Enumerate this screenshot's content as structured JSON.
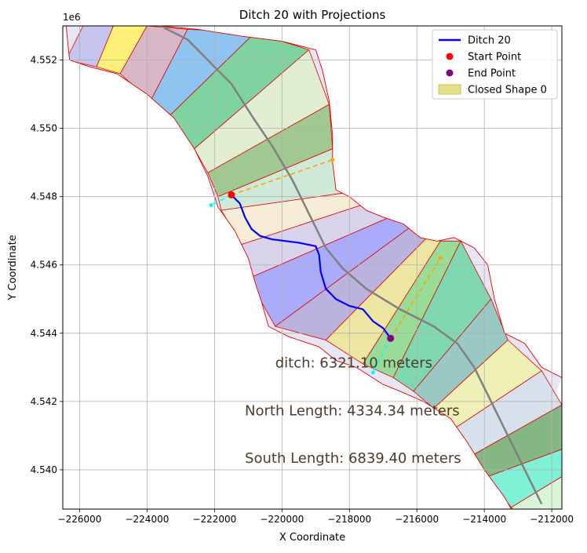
{
  "chart_data": {
    "type": "line",
    "title": "Ditch 20 with Projections",
    "xlabel": "X Coordinate",
    "ylabel": "Y Coordinate",
    "y_offset_label": "1e6",
    "xlim": [
      -226500,
      -211700
    ],
    "ylim": [
      4538850,
      4553000
    ],
    "x_ticks": [
      -226000,
      -224000,
      -222000,
      -220000,
      -218000,
      -216000,
      -214000,
      -212000
    ],
    "y_ticks": [
      4540000,
      4542000,
      4544000,
      4546000,
      4548000,
      4550000,
      4552000
    ],
    "x_tick_labels": [
      "−226000",
      "−224000",
      "−222000",
      "−220000",
      "−218000",
      "−216000",
      "−214000",
      "−212000"
    ],
    "y_tick_labels": [
      "4.540",
      "4.542",
      "4.544",
      "4.546",
      "4.548",
      "4.550",
      "4.552"
    ],
    "grid": true,
    "legend_position": "upper-right",
    "legend": [
      {
        "label": "Ditch 20",
        "kind": "line",
        "color": "#0000ff"
      },
      {
        "label": "Start Point",
        "kind": "point",
        "color": "#ff0000"
      },
      {
        "label": "End Point",
        "kind": "point",
        "color": "#800080"
      },
      {
        "label": "Closed Shape 0",
        "kind": "patch",
        "color": "#e5e08a"
      }
    ],
    "annotations": [
      {
        "text": "ditch: 6321.10 meters",
        "x": -220200,
        "y": 4543000
      },
      {
        "text": "North Length: 4334.34 meters",
        "x": -221100,
        "y": 4541600
      },
      {
        "text": "South Length: 6839.40 meters",
        "x": -221100,
        "y": 4540200
      }
    ],
    "annotation_color": "#4d3b2e",
    "ditch_line": {
      "name": "Ditch 20",
      "color": "#0000ff",
      "points": [
        [
          -221500,
          4548050
        ],
        [
          -221250,
          4547800
        ],
        [
          -221100,
          4547400
        ],
        [
          -220900,
          4547050
        ],
        [
          -220650,
          4546850
        ],
        [
          -220300,
          4546750
        ],
        [
          -219500,
          4546650
        ],
        [
          -219000,
          4546550
        ],
        [
          -218900,
          4546300
        ],
        [
          -218850,
          4545800
        ],
        [
          -218700,
          4545300
        ],
        [
          -218400,
          4545000
        ],
        [
          -218000,
          4544800
        ],
        [
          -217600,
          4544700
        ],
        [
          -217300,
          4544350
        ],
        [
          -217000,
          4544150
        ],
        [
          -216780,
          4543850
        ]
      ]
    },
    "start_point": {
      "name": "Start Point",
      "x": -221500,
      "y": 4548050,
      "color": "#ff0000"
    },
    "end_point": {
      "name": "End Point",
      "x": -216780,
      "y": 4543850,
      "color": "#800080"
    },
    "north_projection": {
      "color": "#ffa500",
      "points": [
        [
          -221500,
          4548050
        ],
        [
          -218500,
          4549080
        ]
      ]
    },
    "south_projection": {
      "color": "#ffa500",
      "points": [
        [
          -216780,
          4543850
        ],
        [
          -215300,
          4546200
        ]
      ]
    },
    "start_offset": {
      "color": "#00ffff",
      "points": [
        [
          -221500,
          4548050
        ],
        [
          -222100,
          4547750
        ]
      ]
    },
    "end_offset": {
      "color": "#00ffff",
      "points": [
        [
          -216780,
          4543850
        ],
        [
          -217300,
          4542850
        ]
      ]
    },
    "centerline": {
      "color": "#808080",
      "points": [
        [
          -223500,
          4552950
        ],
        [
          -222800,
          4552600
        ],
        [
          -222200,
          4552000
        ],
        [
          -221500,
          4551300
        ],
        [
          -220850,
          4550300
        ],
        [
          -220300,
          4549500
        ],
        [
          -219700,
          4548500
        ],
        [
          -219200,
          4547500
        ],
        [
          -218700,
          4546500
        ],
        [
          -218200,
          4545900
        ],
        [
          -217500,
          4545300
        ],
        [
          -216500,
          4544700
        ],
        [
          -215500,
          4544200
        ],
        [
          -214800,
          4543700
        ],
        [
          -214300,
          4543000
        ],
        [
          -213800,
          4542000
        ],
        [
          -213300,
          4541000
        ],
        [
          -212800,
          4540000
        ],
        [
          -212300,
          4539000
        ]
      ]
    },
    "river_outline_left": [
      [
        -226400,
        4553000
      ],
      [
        -226300,
        4552000
      ],
      [
        -225700,
        4551800
      ],
      [
        -224900,
        4551600
      ],
      [
        -224000,
        4551000
      ],
      [
        -223200,
        4550300
      ],
      [
        -222600,
        4549400
      ],
      [
        -222200,
        4548600
      ],
      [
        -221900,
        4547700
      ],
      [
        -221400,
        4547000
      ],
      [
        -221000,
        4546200
      ],
      [
        -220800,
        4545500
      ],
      [
        -220600,
        4544900
      ],
      [
        -220400,
        4544200
      ],
      [
        -219800,
        4543900
      ],
      [
        -218900,
        4543600
      ],
      [
        -218400,
        4543200
      ],
      [
        -217800,
        4543000
      ],
      [
        -217000,
        4542500
      ],
      [
        -216500,
        4542300
      ],
      [
        -215800,
        4542000
      ],
      [
        -215000,
        4541500
      ],
      [
        -214500,
        4540800
      ],
      [
        -214000,
        4540000
      ],
      [
        -213400,
        4539200
      ],
      [
        -213200,
        4538850
      ]
    ],
    "river_outline_right": [
      [
        -223600,
        4553000
      ],
      [
        -222500,
        4552900
      ],
      [
        -221200,
        4552700
      ],
      [
        -220000,
        4552550
      ],
      [
        -219000,
        4552300
      ],
      [
        -218800,
        4551700
      ],
      [
        -218600,
        4550800
      ],
      [
        -218500,
        4549800
      ],
      [
        -218500,
        4549000
      ],
      [
        -218400,
        4548200
      ],
      [
        -218000,
        4548000
      ],
      [
        -217500,
        4547600
      ],
      [
        -217000,
        4547400
      ],
      [
        -216400,
        4547200
      ],
      [
        -215900,
        4546800
      ],
      [
        -215400,
        4546700
      ],
      [
        -214900,
        4546800
      ],
      [
        -214300,
        4546500
      ],
      [
        -213900,
        4546000
      ],
      [
        -213700,
        4545000
      ],
      [
        -213400,
        4544000
      ],
      [
        -212800,
        4543700
      ],
      [
        -212300,
        4543000
      ],
      [
        -211700,
        4542700
      ]
    ],
    "transects": [
      {
        "color": "#c5c5f0",
        "from": [
          -226400,
          4552000
        ],
        "to": [
          -225900,
          4553000
        ]
      },
      {
        "color": "#fff07a",
        "from": [
          -225500,
          4551800
        ],
        "to": [
          -225000,
          4553000
        ]
      },
      {
        "color": "#d7b7c5",
        "from": [
          -224800,
          4551600
        ],
        "to": [
          -224000,
          4553000
        ]
      },
      {
        "color": "#8fc4f0",
        "from": [
          -223900,
          4550800
        ],
        "to": [
          -222800,
          4552900
        ]
      },
      {
        "color": "#7fd3a0",
        "from": [
          -223300,
          4550400
        ],
        "to": [
          -220800,
          4552800
        ]
      },
      {
        "color": "#e2eed2",
        "from": [
          -222600,
          4549400
        ],
        "to": [
          -219200,
          4552300
        ]
      },
      {
        "color": "#a0c890",
        "from": [
          -222200,
          4548700
        ],
        "to": [
          -218600,
          4550700
        ]
      },
      {
        "color": "#cfe9d8",
        "from": [
          -221900,
          4548000
        ],
        "to": [
          -218500,
          4549400
        ]
      },
      {
        "color": "#f7edd6",
        "from": [
          -221800,
          4547600
        ],
        "to": [
          -218200,
          4548100
        ]
      },
      {
        "color": "#d8d2ea",
        "from": [
          -221200,
          4546600
        ],
        "to": [
          -217500,
          4547800
        ]
      },
      {
        "color": "#ababfc",
        "from": [
          -221000,
          4545600
        ],
        "to": [
          -216800,
          4547400
        ]
      },
      {
        "color": "#bab3dd",
        "from": [
          -220200,
          4544200
        ],
        "to": [
          -216200,
          4547100
        ]
      },
      {
        "color": "#ece6a2",
        "from": [
          -218700,
          4543800
        ],
        "to": [
          -215700,
          4546800
        ]
      },
      {
        "color": "#98dc98",
        "from": [
          -217600,
          4543100
        ],
        "to": [
          -215300,
          4546700
        ]
      },
      {
        "color": "#7fd8b0",
        "from": [
          -216700,
          4542700
        ],
        "to": [
          -214700,
          4546700
        ]
      },
      {
        "color": "#9ac8c4",
        "from": [
          -216100,
          4542300
        ],
        "to": [
          -213800,
          4545000
        ]
      },
      {
        "color": "#eef0b6",
        "from": [
          -215500,
          4541800
        ],
        "to": [
          -213300,
          4543800
        ]
      },
      {
        "color": "#d7e1ec",
        "from": [
          -214900,
          4541200
        ],
        "to": [
          -212300,
          4542900
        ]
      },
      {
        "color": "#84b784",
        "from": [
          -214400,
          4540400
        ],
        "to": [
          -211700,
          4541900
        ]
      },
      {
        "color": "#7ff1d7",
        "from": [
          -213900,
          4539800
        ],
        "to": [
          -211700,
          4540600
        ]
      },
      {
        "color": "#d8f5d8",
        "from": [
          -213200,
          4538900
        ],
        "to": [
          -211700,
          4539800
        ]
      }
    ]
  }
}
